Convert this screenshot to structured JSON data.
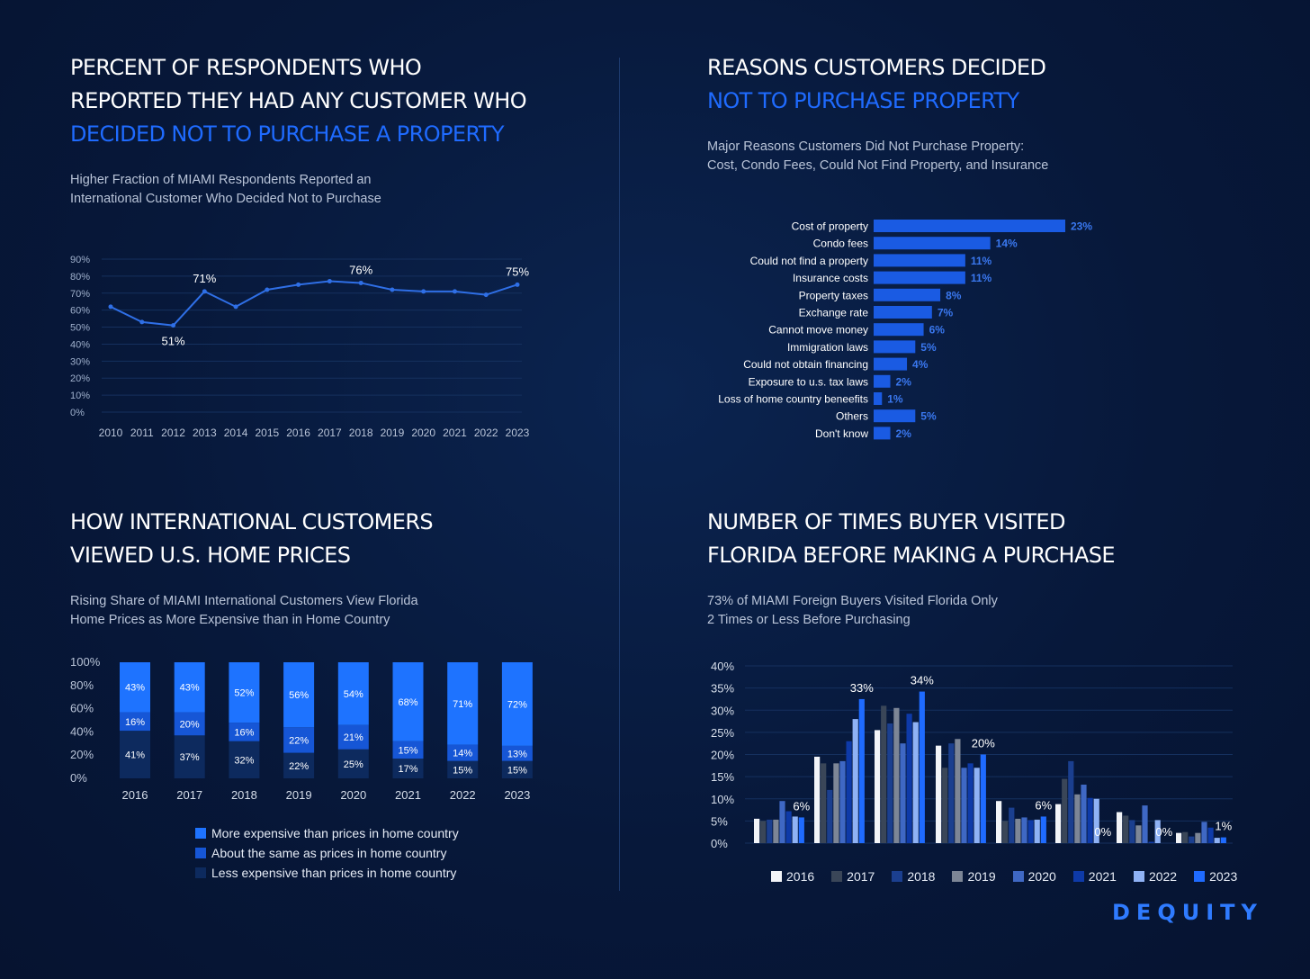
{
  "panel1": {
    "title_white": [
      "PERCENT OF RESPONDENTS WHO",
      "REPORTED THEY HAD ANY CUSTOMER WHO"
    ],
    "title_blue": [
      "DECIDED NOT TO PURCHASE A PROPERTY"
    ],
    "subtitle": [
      "Higher Fraction of MIAMI Respondents Reported an",
      "International Customer Who Decided Not to Purchase"
    ]
  },
  "panel2": {
    "title_white": [
      "REASONS CUSTOMERS DECIDED"
    ],
    "title_blue": [
      "NOT TO PURCHASE PROPERTY"
    ],
    "subtitle": [
      "Major Reasons Customers Did Not Purchase Property:",
      "Cost, Condo Fees, Could Not Find Property, and Insurance"
    ]
  },
  "panel3": {
    "title_white": [
      "HOW INTERNATIONAL CUSTOMERS",
      "VIEWED U.S. HOME PRICES"
    ],
    "title_blue": [],
    "subtitle": [
      "Rising Share of MIAMI International Customers View Florida",
      "Home Prices as More Expensive than in Home Country"
    ]
  },
  "panel4": {
    "title_white": [
      "NUMBER OF TIMES BUYER VISITED",
      "FLORIDA BEFORE MAKING A PURCHASE"
    ],
    "title_blue": [],
    "subtitle": [
      "73% of MIAMI Foreign Buyers Visited Florida Only",
      "2 Times or Less Before Purchasing"
    ]
  },
  "logo": "DEQUITY",
  "chart_data": [
    {
      "id": "line",
      "type": "line",
      "x": [
        "2010",
        "2011",
        "2012",
        "2013",
        "2014",
        "2015",
        "2016",
        "2017",
        "2018",
        "2019",
        "2020",
        "2021",
        "2022",
        "2023"
      ],
      "values": [
        62,
        53,
        51,
        71,
        62,
        72,
        75,
        77,
        76,
        72,
        71,
        71,
        69,
        75
      ],
      "ylim": [
        0,
        90
      ],
      "yticks": [
        "0%",
        "10%",
        "20%",
        "30%",
        "40%",
        "50%",
        "60%",
        "70%",
        "80%",
        "90%"
      ],
      "annotations": [
        {
          "index": 2,
          "label": "51%",
          "pos": "below"
        },
        {
          "index": 3,
          "label": "71%",
          "pos": "above"
        },
        {
          "index": 8,
          "label": "76%",
          "pos": "above"
        },
        {
          "index": 13,
          "label": "75%",
          "pos": "above"
        }
      ],
      "color": "#2f6fe6"
    },
    {
      "id": "hbar",
      "type": "bar",
      "orientation": "horizontal",
      "categories": [
        "Cost of property",
        "Condo fees",
        "Could not find a property",
        "Insurance costs",
        "Property taxes",
        "Exchange rate",
        "Cannot move money",
        "Immigration laws",
        "Could not obtain financing",
        "Exposure to u.s. tax laws",
        "Loss of home country beneefits",
        "Others",
        "Don't know"
      ],
      "values": [
        23,
        14,
        11,
        11,
        8,
        7,
        6,
        5,
        4,
        2,
        1,
        5,
        2
      ],
      "labels": [
        "23%",
        "14%",
        "11%",
        "11%",
        "8%",
        "7%",
        "6%",
        "5%",
        "4%",
        "2%",
        "1%",
        "5%",
        "2%"
      ],
      "color": "#1a5be3"
    },
    {
      "id": "stacked",
      "type": "bar",
      "stacked": true,
      "categories": [
        "2016",
        "2017",
        "2018",
        "2019",
        "2020",
        "2021",
        "2022",
        "2023"
      ],
      "yticks": [
        "0%",
        "20%",
        "40%",
        "60%",
        "80%",
        "100%"
      ],
      "series": [
        {
          "name": "Less expensive than prices in home country",
          "values": [
            41,
            37,
            32,
            22,
            25,
            17,
            15,
            15
          ],
          "color": "#0d2a5e"
        },
        {
          "name": "About the same as prices in home country",
          "values": [
            16,
            20,
            16,
            22,
            21,
            15,
            14,
            13
          ],
          "color": "#1656d6"
        },
        {
          "name": "More expensive than prices in home country",
          "values": [
            43,
            43,
            52,
            56,
            54,
            68,
            71,
            72
          ],
          "color": "#1e73ff"
        }
      ]
    },
    {
      "id": "grouped",
      "type": "bar",
      "ylim": [
        0,
        40
      ],
      "yticks": [
        "0%",
        "5%",
        "10%",
        "15%",
        "20%",
        "25%",
        "30%",
        "35%",
        "40%"
      ],
      "series": [
        {
          "name": "2016",
          "color": "#f2f4f8",
          "values": [
            5.5,
            19.5,
            25.5,
            22,
            9.5,
            8.8,
            7,
            2.3
          ]
        },
        {
          "name": "2017",
          "color": "#3a4658",
          "values": [
            5,
            18,
            31,
            17,
            5,
            14.5,
            6.2,
            2.5
          ]
        },
        {
          "name": "2018",
          "color": "#1b3f8f",
          "values": [
            5.3,
            12,
            27,
            22.5,
            8,
            18.5,
            5.2,
            1.5
          ]
        },
        {
          "name": "2019",
          "color": "#7d8696",
          "values": [
            5.3,
            18,
            30.5,
            23.5,
            5.5,
            11,
            4,
            2.3
          ]
        },
        {
          "name": "2020",
          "color": "#3f68c4",
          "values": [
            9.5,
            18.5,
            22.5,
            17,
            5.8,
            13.2,
            8.5,
            4.8
          ]
        },
        {
          "name": "2021",
          "color": "#0e3aa8",
          "values": [
            7.2,
            23,
            29.2,
            18,
            5.2,
            10.2,
            0.3,
            3.5
          ]
        },
        {
          "name": "2022",
          "color": "#8fb2f5",
          "values": [
            6,
            28,
            27.3,
            17,
            5.3,
            10,
            5.2,
            1.2
          ]
        },
        {
          "name": "2023",
          "color": "#1f6bff",
          "values": [
            5.8,
            32.5,
            34.2,
            20,
            6,
            0,
            0,
            1.3
          ]
        }
      ],
      "annotations": [
        {
          "group": 0,
          "label": "6%"
        },
        {
          "group": 1,
          "label": "33%"
        },
        {
          "group": 2,
          "label": "34%"
        },
        {
          "group": 3,
          "label": "20%"
        },
        {
          "group": 4,
          "label": "6%"
        },
        {
          "group": 5,
          "label": "0%"
        },
        {
          "group": 6,
          "label": "0%"
        },
        {
          "group": 7,
          "label": "1%"
        }
      ]
    }
  ]
}
